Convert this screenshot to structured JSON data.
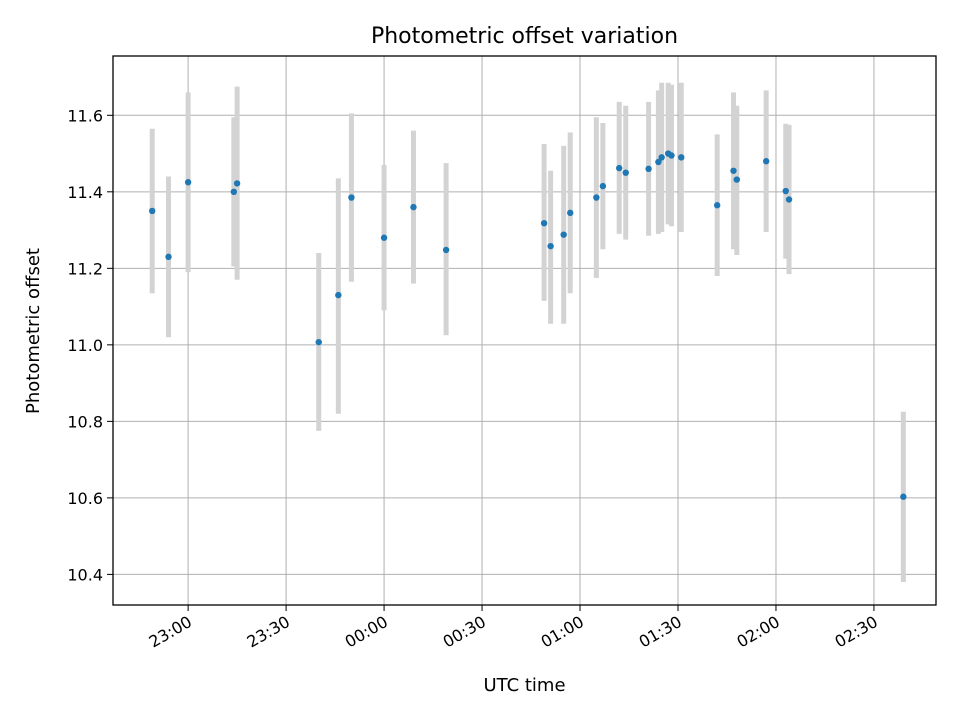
{
  "chart_data": {
    "type": "scatter",
    "title": "Photometric offset variation",
    "xlabel": "UTC time",
    "ylabel": "Photometric offset",
    "x_axis_type": "time",
    "x_ticks": [
      "23:00",
      "23:30",
      "00:00",
      "00:30",
      "01:00",
      "01:30",
      "02:00",
      "02:30"
    ],
    "y_ticks": [
      "10.4",
      "10.6",
      "10.8",
      "11.0",
      "11.2",
      "11.4",
      "11.6"
    ],
    "xlim": [
      "22:37",
      "02:49"
    ],
    "ylim": [
      10.32,
      11.755
    ],
    "grid": true,
    "marker_color": "#1f77b4",
    "errorbar_color": "#d3d3d3",
    "points": [
      {
        "x": "22:49",
        "y": 11.35,
        "err_low": 11.135,
        "err_high": 11.565
      },
      {
        "x": "22:54",
        "y": 11.23,
        "err_low": 11.02,
        "err_high": 11.44
      },
      {
        "x": "23:00",
        "y": 11.425,
        "err_low": 11.19,
        "err_high": 11.66
      },
      {
        "x": "23:14",
        "y": 11.4,
        "err_low": 11.205,
        "err_high": 11.595
      },
      {
        "x": "23:15",
        "y": 11.422,
        "err_low": 11.17,
        "err_high": 11.675
      },
      {
        "x": "23:40",
        "y": 11.007,
        "err_low": 10.775,
        "err_high": 11.24
      },
      {
        "x": "23:46",
        "y": 11.13,
        "err_low": 10.82,
        "err_high": 11.435
      },
      {
        "x": "23:50",
        "y": 11.385,
        "err_low": 11.165,
        "err_high": 11.605
      },
      {
        "x": "00:00",
        "y": 11.28,
        "err_low": 11.09,
        "err_high": 11.47
      },
      {
        "x": "00:09",
        "y": 11.36,
        "err_low": 11.16,
        "err_high": 11.56
      },
      {
        "x": "00:19",
        "y": 11.248,
        "err_low": 11.025,
        "err_high": 11.475
      },
      {
        "x": "00:49",
        "y": 11.318,
        "err_low": 11.115,
        "err_high": 11.525
      },
      {
        "x": "00:51",
        "y": 11.258,
        "err_low": 11.055,
        "err_high": 11.455
      },
      {
        "x": "00:55",
        "y": 11.288,
        "err_low": 11.055,
        "err_high": 11.52
      },
      {
        "x": "00:57",
        "y": 11.345,
        "err_low": 11.135,
        "err_high": 11.555
      },
      {
        "x": "01:05",
        "y": 11.385,
        "err_low": 11.175,
        "err_high": 11.595
      },
      {
        "x": "01:07",
        "y": 11.415,
        "err_low": 11.25,
        "err_high": 11.58
      },
      {
        "x": "01:12",
        "y": 11.462,
        "err_low": 11.29,
        "err_high": 11.635
      },
      {
        "x": "01:14",
        "y": 11.45,
        "err_low": 11.275,
        "err_high": 11.625
      },
      {
        "x": "01:21",
        "y": 11.46,
        "err_low": 11.285,
        "err_high": 11.635
      },
      {
        "x": "01:24",
        "y": 11.478,
        "err_low": 11.29,
        "err_high": 11.665
      },
      {
        "x": "01:25",
        "y": 11.49,
        "err_low": 11.295,
        "err_high": 11.685
      },
      {
        "x": "01:27",
        "y": 11.5,
        "err_low": 11.315,
        "err_high": 11.685
      },
      {
        "x": "01:28",
        "y": 11.495,
        "err_low": 11.31,
        "err_high": 11.68
      },
      {
        "x": "01:31",
        "y": 11.49,
        "err_low": 11.295,
        "err_high": 11.685
      },
      {
        "x": "01:42",
        "y": 11.365,
        "err_low": 11.18,
        "err_high": 11.55
      },
      {
        "x": "01:47",
        "y": 11.455,
        "err_low": 11.25,
        "err_high": 11.66
      },
      {
        "x": "01:48",
        "y": 11.432,
        "err_low": 11.235,
        "err_high": 11.625
      },
      {
        "x": "01:57",
        "y": 11.48,
        "err_low": 11.295,
        "err_high": 11.665
      },
      {
        "x": "02:03",
        "y": 11.402,
        "err_low": 11.225,
        "err_high": 11.578
      },
      {
        "x": "02:04",
        "y": 11.38,
        "err_low": 11.185,
        "err_high": 11.575
      },
      {
        "x": "02:39",
        "y": 10.603,
        "err_low": 10.38,
        "err_high": 10.825
      }
    ]
  }
}
